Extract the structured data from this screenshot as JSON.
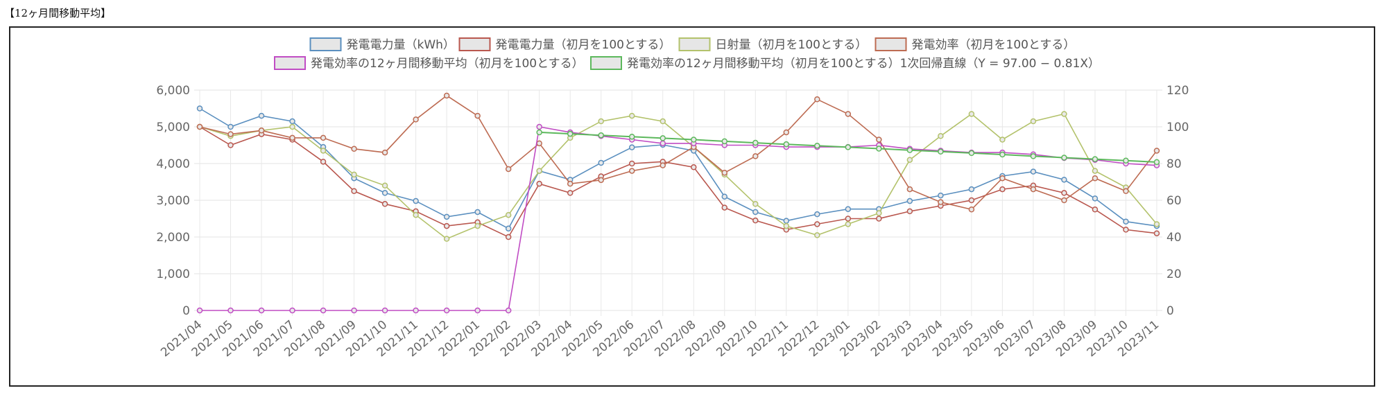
{
  "page": {
    "caption": "【12ヶ月間移動平均】"
  },
  "chart_data": {
    "type": "line",
    "title": "",
    "xlabel": "",
    "ylabel": "",
    "categories": [
      "2021/04",
      "2021/05",
      "2021/06",
      "2021/07",
      "2021/08",
      "2021/09",
      "2021/10",
      "2021/11",
      "2021/12",
      "2022/01",
      "2022/02",
      "2022/03",
      "2022/04",
      "2022/05",
      "2022/06",
      "2022/07",
      "2022/08",
      "2022/09",
      "2022/10",
      "2022/11",
      "2022/12",
      "2023/01",
      "2023/02",
      "2023/03",
      "2023/04",
      "2023/05",
      "2023/06",
      "2023/07",
      "2023/08",
      "2023/09",
      "2023/10",
      "2023/11"
    ],
    "y_left": {
      "min": 0,
      "max": 6000,
      "ticks": [
        "0",
        "1,000",
        "2,000",
        "3,000",
        "4,000",
        "5,000",
        "6,000"
      ]
    },
    "y_right": {
      "min": 0,
      "max": 120,
      "ticks": [
        "0",
        "20",
        "40",
        "60",
        "80",
        "100",
        "120"
      ]
    },
    "grid": true,
    "legend_position": "top",
    "series": [
      {
        "name": "発電電力量（kWh）",
        "axis": "left",
        "color": "#5a8fbf",
        "values": [
          5500,
          5000,
          5300,
          5150,
          4450,
          3600,
          3200,
          2980,
          2550,
          2680,
          2230,
          3800,
          3560,
          4020,
          4440,
          4510,
          4350,
          3100,
          2680,
          2440,
          2620,
          2760,
          2760,
          2980,
          3130,
          3300,
          3660,
          3780,
          3560,
          3050,
          2420,
          2300
        ]
      },
      {
        "name": "発電電力量（初月を100とする）",
        "axis": "right",
        "color": "#b9574e",
        "values": [
          100,
          90,
          96,
          93,
          81,
          65,
          58,
          54,
          46,
          48,
          40,
          69,
          64,
          73,
          80,
          81,
          78,
          56,
          49,
          44,
          47,
          50,
          50,
          54,
          57,
          60,
          66,
          68,
          64,
          55,
          44,
          42
        ]
      },
      {
        "name": "日射量（初月を100とする）",
        "axis": "right",
        "color": "#b3c26b",
        "values": [
          100,
          95,
          98,
          100,
          87,
          74,
          68,
          52,
          39,
          46,
          52,
          76,
          94,
          103,
          106,
          103,
          89,
          74,
          58,
          46,
          41,
          47,
          53,
          82,
          95,
          107,
          93,
          103,
          107,
          76,
          67,
          47
        ]
      },
      {
        "name": "発電効率（初月を100とする）",
        "axis": "right",
        "color": "#bd6b52",
        "values": [
          100,
          96,
          98,
          94,
          94,
          88,
          86,
          104,
          117,
          106,
          77,
          91,
          69,
          71,
          76,
          79,
          89,
          75,
          84,
          97,
          115,
          107,
          93,
          66,
          59,
          55,
          72,
          66,
          60,
          72,
          65,
          87
        ]
      },
      {
        "name": "発電効率の12ヶ月間移動平均（初月を100とする）",
        "axis": "right",
        "color": "#c04cc4",
        "values": [
          0,
          0,
          0,
          0,
          0,
          0,
          0,
          0,
          0,
          0,
          0,
          100,
          97,
          95,
          93,
          91,
          91,
          90,
          90,
          89,
          89,
          89,
          90,
          88,
          87,
          86,
          86,
          85,
          83,
          82,
          80,
          79
        ]
      },
      {
        "name": "発電効率の12ヶ月間移動平均（初月を100とする）1次回帰直線（Y = 97.00 − 0.81X）",
        "axis": "right",
        "color": "#5cb85c",
        "values": [
          null,
          null,
          null,
          null,
          null,
          null,
          null,
          null,
          null,
          null,
          null,
          97.0,
          96.2,
          95.4,
          94.6,
          93.8,
          93.0,
          92.1,
          91.3,
          90.5,
          89.7,
          88.9,
          88.1,
          87.3,
          86.5,
          85.7,
          84.9,
          84.0,
          83.2,
          82.4,
          81.6,
          80.8
        ]
      }
    ]
  }
}
